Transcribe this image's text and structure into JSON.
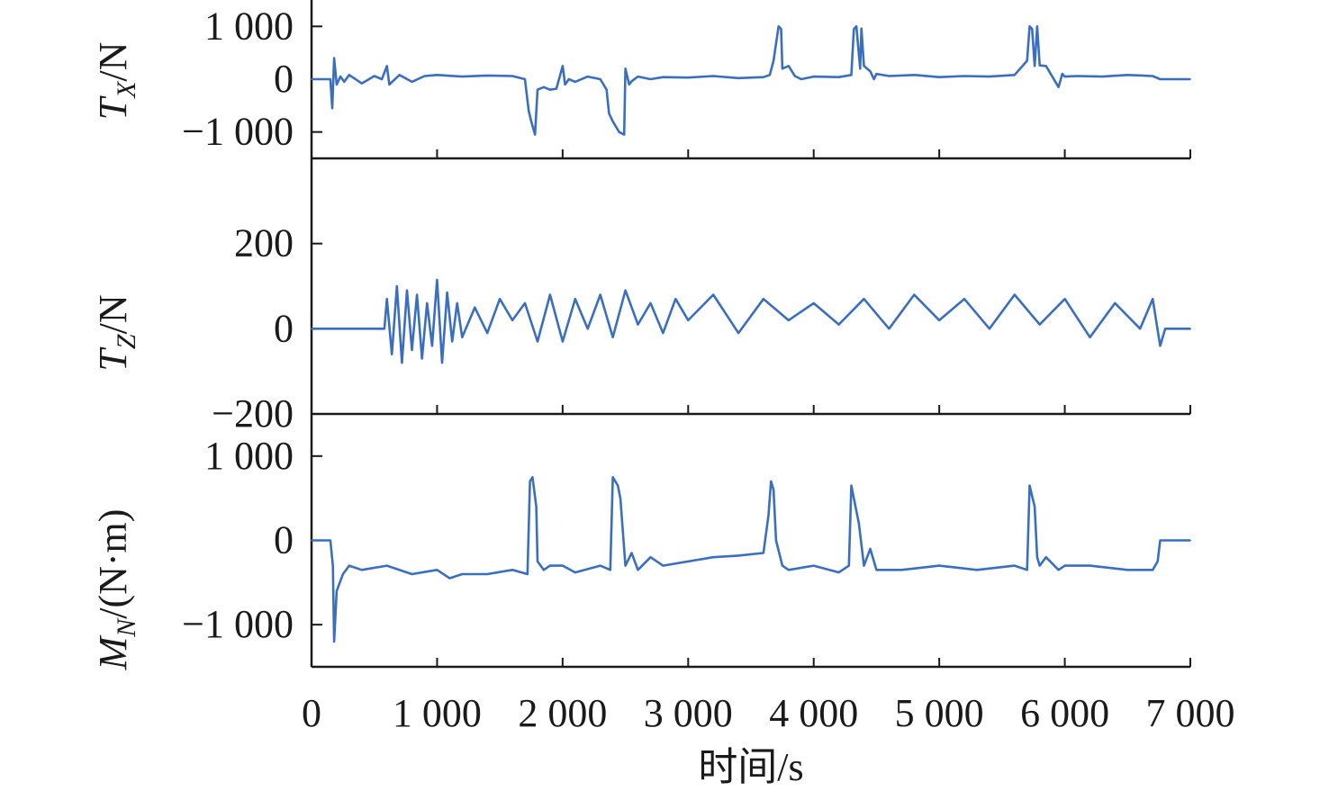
{
  "chart_data": [
    {
      "type": "line",
      "ylabel_main": "T",
      "ylabel_sub": "X",
      "ylabel_unit": "/N",
      "xlim": [
        0,
        7000
      ],
      "ylim": [
        -1500,
        1500
      ],
      "yticks": [
        -1000,
        0,
        1000
      ],
      "ytick_labels": [
        "−1 000",
        "0",
        "1 000"
      ],
      "series": [
        {
          "color": "#3a6fc0",
          "x": [
            0,
            150,
            165,
            180,
            200,
            230,
            260,
            300,
            400,
            500,
            560,
            600,
            620,
            700,
            800,
            900,
            1000,
            1200,
            1400,
            1600,
            1700,
            1730,
            1750,
            1780,
            1800,
            1850,
            1900,
            1950,
            2000,
            2020,
            2050,
            2100,
            2200,
            2300,
            2350,
            2370,
            2400,
            2450,
            2490,
            2500,
            2530,
            2550,
            2600,
            2700,
            2800,
            3000,
            3200,
            3400,
            3600,
            3650,
            3680,
            3720,
            3740,
            3750,
            3800,
            3850,
            3900,
            4000,
            4200,
            4300,
            4320,
            4340,
            4370,
            4380,
            4400,
            4450,
            4480,
            4500,
            4600,
            4800,
            5000,
            5200,
            5400,
            5600,
            5700,
            5720,
            5740,
            5760,
            5780,
            5800,
            5850,
            5950,
            5980,
            6000,
            6100,
            6300,
            6500,
            6700,
            6760,
            6800,
            7000
          ],
          "y": [
            0,
            0,
            -550,
            400,
            -100,
            50,
            -50,
            80,
            -80,
            60,
            0,
            250,
            -100,
            80,
            -50,
            60,
            80,
            50,
            70,
            60,
            0,
            -600,
            -800,
            -1050,
            -200,
            -150,
            -200,
            -180,
            250,
            -100,
            0,
            -50,
            50,
            0,
            -200,
            -650,
            -800,
            -1000,
            -1050,
            200,
            -100,
            -40,
            50,
            0,
            40,
            30,
            60,
            20,
            40,
            80,
            350,
            1000,
            950,
            200,
            250,
            60,
            0,
            50,
            40,
            80,
            950,
            1000,
            200,
            960,
            250,
            150,
            0,
            100,
            60,
            80,
            40,
            60,
            50,
            80,
            350,
            1000,
            950,
            250,
            1000,
            260,
            250,
            -150,
            100,
            50,
            60,
            50,
            80,
            60,
            0,
            0,
            0
          ]
        }
      ]
    },
    {
      "type": "line",
      "ylabel_main": "T",
      "ylabel_sub": "Z",
      "ylabel_unit": "/N",
      "xlim": [
        0,
        7000
      ],
      "ylim": [
        -200,
        400
      ],
      "yticks": [
        -200,
        0,
        200
      ],
      "ytick_labels": [
        "−200",
        "0",
        "200"
      ],
      "series": [
        {
          "color": "#3a6fc0",
          "x": [
            0,
            580,
            600,
            640,
            680,
            720,
            760,
            800,
            840,
            880,
            920,
            960,
            1000,
            1040,
            1080,
            1120,
            1160,
            1200,
            1300,
            1400,
            1500,
            1600,
            1700,
            1800,
            1900,
            2000,
            2100,
            2200,
            2300,
            2400,
            2500,
            2600,
            2700,
            2800,
            2900,
            3000,
            3200,
            3400,
            3600,
            3800,
            4000,
            4200,
            4400,
            4600,
            4800,
            5000,
            5200,
            5400,
            5600,
            5800,
            6000,
            6200,
            6400,
            6600,
            6700,
            6760,
            6800,
            7000
          ],
          "y": [
            0,
            0,
            70,
            -60,
            100,
            -80,
            90,
            -50,
            80,
            -70,
            60,
            -40,
            115,
            -80,
            85,
            -30,
            60,
            -20,
            50,
            -10,
            70,
            20,
            60,
            -30,
            80,
            -30,
            70,
            0,
            80,
            -20,
            90,
            10,
            60,
            -10,
            70,
            20,
            80,
            -10,
            70,
            20,
            60,
            10,
            70,
            0,
            80,
            20,
            70,
            0,
            80,
            10,
            70,
            -20,
            60,
            0,
            70,
            -40,
            0,
            0
          ]
        }
      ]
    },
    {
      "type": "line",
      "ylabel_main": "M",
      "ylabel_sub": "N",
      "ylabel_unit": "/(N·m)",
      "xlim": [
        0,
        7000
      ],
      "xticks": [
        0,
        1000,
        2000,
        3000,
        4000,
        5000,
        6000,
        7000
      ],
      "xtick_labels": [
        "0",
        "1 000",
        "2 000",
        "3 000",
        "4 000",
        "5 000",
        "6 000",
        "7 000"
      ],
      "xlabel": "时间/s",
      "ylim": [
        -1500,
        1500
      ],
      "yticks": [
        -1000,
        0,
        1000
      ],
      "ytick_labels": [
        "−1 000",
        "0",
        "1 000"
      ],
      "series": [
        {
          "color": "#3a6fc0",
          "x": [
            0,
            150,
            170,
            180,
            200,
            250,
            300,
            400,
            600,
            800,
            1000,
            1100,
            1200,
            1400,
            1600,
            1720,
            1740,
            1760,
            1790,
            1800,
            1850,
            1900,
            2000,
            2100,
            2300,
            2380,
            2400,
            2440,
            2460,
            2500,
            2550,
            2600,
            2700,
            2800,
            3000,
            3200,
            3400,
            3600,
            3640,
            3660,
            3680,
            3700,
            3750,
            3800,
            4000,
            4200,
            4280,
            4300,
            4320,
            4360,
            4400,
            4450,
            4500,
            4700,
            5000,
            5300,
            5600,
            5700,
            5720,
            5760,
            5780,
            5800,
            5850,
            5950,
            6000,
            6200,
            6500,
            6700,
            6740,
            6760,
            6800,
            7000
          ],
          "y": [
            0,
            0,
            -300,
            -1200,
            -600,
            -400,
            -300,
            -350,
            -300,
            -400,
            -350,
            -450,
            -400,
            -400,
            -350,
            -400,
            700,
            750,
            400,
            -250,
            -350,
            -300,
            -300,
            -380,
            -300,
            -350,
            750,
            650,
            500,
            -300,
            -150,
            -350,
            -200,
            -300,
            -250,
            -200,
            -180,
            -150,
            300,
            700,
            600,
            0,
            -300,
            -350,
            -300,
            -380,
            -300,
            650,
            500,
            200,
            -300,
            -100,
            -350,
            -350,
            -300,
            -350,
            -300,
            -350,
            650,
            400,
            -200,
            -300,
            -200,
            -350,
            -300,
            -300,
            -350,
            -350,
            -250,
            0,
            0,
            0
          ]
        }
      ]
    }
  ]
}
